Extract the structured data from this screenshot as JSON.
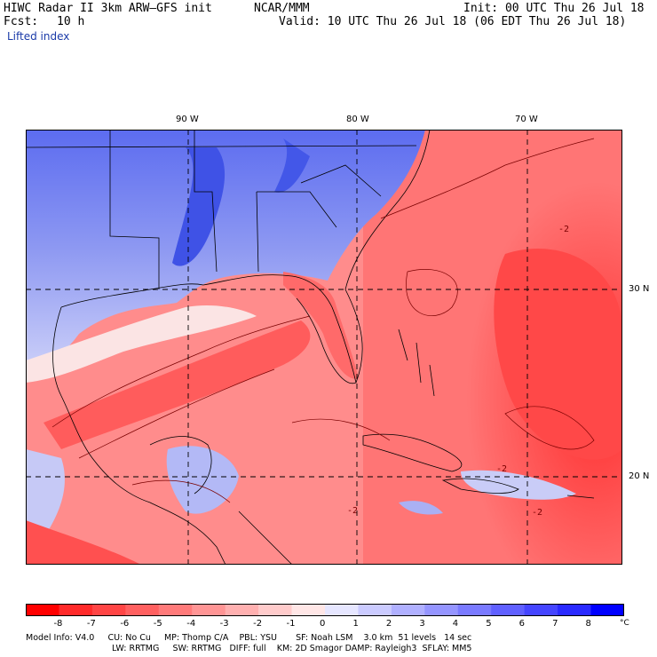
{
  "header": {
    "title": "HIWC Radar II 3km ARW–GFS init",
    "org": "NCAR/MMM",
    "init": "Init: 00 UTC Thu 26 Jul 18",
    "fcst_label": "Fcst:",
    "fcst_value": "10 h",
    "valid": "Valid: 10 UTC Thu 26 Jul 18 (06 EDT Thu 26 Jul 18)",
    "field": "Lifted index"
  },
  "map": {
    "lon_labels": [
      "90 W",
      "80 W",
      "70 W"
    ],
    "lat_labels": [
      "30 N",
      "20 N"
    ],
    "contour_labels": [
      "-2",
      "-2",
      "-2",
      "-2"
    ],
    "colors": {
      "border": "#000000",
      "grid": "#000000",
      "contour": "#7a0000"
    }
  },
  "colorbar": {
    "ticks": [
      "-8",
      "-7",
      "-6",
      "-5",
      "-4",
      "-3",
      "-2",
      "-1",
      "0",
      "1",
      "2",
      "3",
      "4",
      "5",
      "6",
      "7",
      "8"
    ],
    "unit": "°C",
    "colors": [
      "#ff0000",
      "#ff2a2a",
      "#ff4545",
      "#ff6060",
      "#ff7a7a",
      "#ff9595",
      "#ffb0b0",
      "#ffcbcb",
      "#ffe6e6",
      "#e6e6ff",
      "#cbcbff",
      "#b0b0ff",
      "#9595ff",
      "#7a7aff",
      "#6060ff",
      "#4545ff",
      "#2a2aff",
      "#0000ff"
    ]
  },
  "footer": {
    "line1": "Model Info: V4.0     CU: No Cu     MP: Thomp C/A    PBL: YSU       SF: Noah LSM    3.0 km  51 levels   14 sec",
    "line2": "LW: RRTMG     SW: RRTMG   DIFF: full    KM: 2D Smagor DAMP: Rayleigh3  SFLAY: MM5"
  }
}
